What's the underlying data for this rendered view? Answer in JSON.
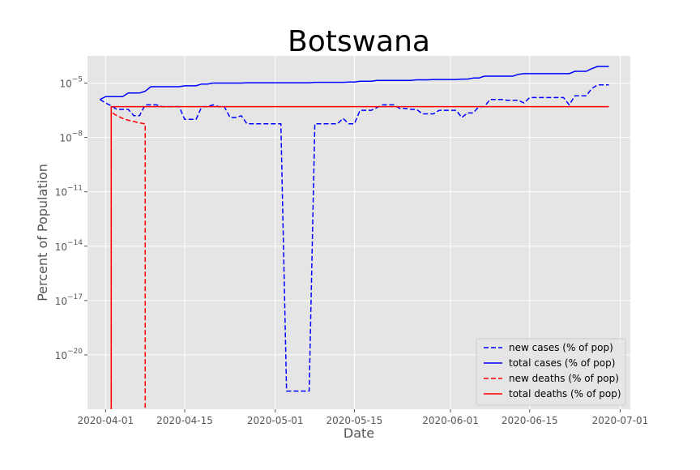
{
  "chart_data": {
    "type": "line",
    "title": "Botswana",
    "xlabel": "Date",
    "ylabel": "Percent of Population",
    "yscale": "log",
    "ylim_exp": [
      -23,
      -3.5
    ],
    "xlim_days": [
      -3.2,
      92.8
    ],
    "x_start_date": "2020-04-01",
    "grid": true,
    "legend_position": "lower-right",
    "xticks": [
      {
        "label": "2020-04-01",
        "day": 0
      },
      {
        "label": "2020-04-15",
        "day": 14
      },
      {
        "label": "2020-05-01",
        "day": 30
      },
      {
        "label": "2020-05-15",
        "day": 44
      },
      {
        "label": "2020-06-01",
        "day": 61
      },
      {
        "label": "2020-06-15",
        "day": 75
      },
      {
        "label": "2020-07-01",
        "day": 91
      }
    ],
    "yticks": [
      {
        "base": "10",
        "exp": "−20",
        "value": -20
      },
      {
        "base": "10",
        "exp": "−17",
        "value": -17
      },
      {
        "base": "10",
        "exp": "−14",
        "value": -14
      },
      {
        "base": "10",
        "exp": "−11",
        "value": -11
      },
      {
        "base": "10",
        "exp": "−8",
        "value": -8
      },
      {
        "base": "10",
        "exp": "−5",
        "value": -5
      }
    ],
    "series": [
      {
        "name": "new cases (% of pop)",
        "color": "#0000ff",
        "dash": "dashed",
        "points": [
          [
            -1,
            -5.9
          ],
          [
            0,
            -6.1
          ],
          [
            1,
            -6.25
          ],
          [
            2,
            -6.45
          ],
          [
            3,
            -6.45
          ],
          [
            4,
            -6.45
          ],
          [
            5,
            -6.8
          ],
          [
            6,
            -6.8
          ],
          [
            7,
            -6.2
          ],
          [
            8,
            -6.2
          ],
          [
            9,
            -6.2
          ],
          [
            10,
            -6.3
          ],
          [
            11,
            -6.3
          ],
          [
            12,
            -6.3
          ],
          [
            13,
            -6.3
          ],
          [
            14,
            -7.0
          ],
          [
            15,
            -7.0
          ],
          [
            16,
            -7.0
          ],
          [
            17,
            -6.3
          ],
          [
            18,
            -6.3
          ],
          [
            19,
            -6.2
          ],
          [
            20,
            -6.3
          ],
          [
            21,
            -6.3
          ],
          [
            22,
            -6.9
          ],
          [
            23,
            -6.9
          ],
          [
            24,
            -6.8
          ],
          [
            25,
            -7.25
          ],
          [
            26,
            -7.25
          ],
          [
            27,
            -7.25
          ],
          [
            28,
            -7.25
          ],
          [
            29,
            -7.25
          ],
          [
            30,
            -7.25
          ],
          [
            31,
            -7.25
          ],
          [
            32,
            -22.0
          ],
          [
            33,
            -22.0
          ],
          [
            34,
            -22.0
          ],
          [
            35,
            -22.0
          ],
          [
            36,
            -22.0
          ],
          [
            37,
            -7.25
          ],
          [
            38,
            -7.25
          ],
          [
            39,
            -7.25
          ],
          [
            40,
            -7.25
          ],
          [
            41,
            -7.25
          ],
          [
            42,
            -6.95
          ],
          [
            43,
            -7.25
          ],
          [
            44,
            -7.25
          ],
          [
            45,
            -6.5
          ],
          [
            46,
            -6.5
          ],
          [
            47,
            -6.5
          ],
          [
            48,
            -6.35
          ],
          [
            49,
            -6.2
          ],
          [
            50,
            -6.2
          ],
          [
            51,
            -6.2
          ],
          [
            52,
            -6.4
          ],
          [
            53,
            -6.4
          ],
          [
            54,
            -6.45
          ],
          [
            55,
            -6.45
          ],
          [
            56,
            -6.7
          ],
          [
            57,
            -6.7
          ],
          [
            58,
            -6.7
          ],
          [
            59,
            -6.5
          ],
          [
            60,
            -6.5
          ],
          [
            61,
            -6.5
          ],
          [
            62,
            -6.5
          ],
          [
            63,
            -6.9
          ],
          [
            64,
            -6.65
          ],
          [
            65,
            -6.65
          ],
          [
            66,
            -6.3
          ],
          [
            67,
            -6.3
          ],
          [
            68,
            -5.9
          ],
          [
            69,
            -5.9
          ],
          [
            70,
            -5.9
          ],
          [
            71,
            -5.95
          ],
          [
            72,
            -5.95
          ],
          [
            73,
            -5.95
          ],
          [
            74,
            -6.1
          ],
          [
            75,
            -5.8
          ],
          [
            76,
            -5.8
          ],
          [
            77,
            -5.8
          ],
          [
            78,
            -5.8
          ],
          [
            79,
            -5.8
          ],
          [
            80,
            -5.8
          ],
          [
            81,
            -5.8
          ],
          [
            82,
            -6.2
          ],
          [
            83,
            -5.7
          ],
          [
            84,
            -5.7
          ],
          [
            85,
            -5.7
          ],
          [
            86,
            -5.3
          ],
          [
            87,
            -5.1
          ],
          [
            88,
            -5.1
          ],
          [
            89,
            -5.1
          ]
        ]
      },
      {
        "name": "total cases (% of pop)",
        "color": "#0000ff",
        "dash": "solid",
        "points": [
          [
            -1,
            -5.9
          ],
          [
            0,
            -5.75
          ],
          [
            1,
            -5.75
          ],
          [
            2,
            -5.75
          ],
          [
            3,
            -5.75
          ],
          [
            4,
            -5.55
          ],
          [
            5,
            -5.55
          ],
          [
            6,
            -5.55
          ],
          [
            7,
            -5.45
          ],
          [
            8,
            -5.2
          ],
          [
            9,
            -5.2
          ],
          [
            10,
            -5.2
          ],
          [
            11,
            -5.2
          ],
          [
            12,
            -5.2
          ],
          [
            13,
            -5.2
          ],
          [
            14,
            -5.15
          ],
          [
            15,
            -5.15
          ],
          [
            16,
            -5.15
          ],
          [
            17,
            -5.05
          ],
          [
            18,
            -5.05
          ],
          [
            19,
            -5.0
          ],
          [
            20,
            -5.0
          ],
          [
            21,
            -5.0
          ],
          [
            22,
            -5.0
          ],
          [
            23,
            -5.0
          ],
          [
            24,
            -5.0
          ],
          [
            25,
            -4.98
          ],
          [
            26,
            -4.98
          ],
          [
            27,
            -4.98
          ],
          [
            28,
            -4.98
          ],
          [
            29,
            -4.98
          ],
          [
            30,
            -4.98
          ],
          [
            31,
            -4.98
          ],
          [
            32,
            -4.98
          ],
          [
            33,
            -4.98
          ],
          [
            34,
            -4.98
          ],
          [
            35,
            -4.98
          ],
          [
            36,
            -4.98
          ],
          [
            37,
            -4.96
          ],
          [
            38,
            -4.96
          ],
          [
            39,
            -4.96
          ],
          [
            40,
            -4.96
          ],
          [
            41,
            -4.96
          ],
          [
            42,
            -4.96
          ],
          [
            43,
            -4.94
          ],
          [
            44,
            -4.94
          ],
          [
            45,
            -4.9
          ],
          [
            46,
            -4.9
          ],
          [
            47,
            -4.9
          ],
          [
            48,
            -4.85
          ],
          [
            49,
            -4.85
          ],
          [
            50,
            -4.85
          ],
          [
            51,
            -4.85
          ],
          [
            52,
            -4.85
          ],
          [
            53,
            -4.85
          ],
          [
            54,
            -4.85
          ],
          [
            55,
            -4.82
          ],
          [
            56,
            -4.82
          ],
          [
            57,
            -4.82
          ],
          [
            58,
            -4.8
          ],
          [
            59,
            -4.8
          ],
          [
            60,
            -4.8
          ],
          [
            61,
            -4.8
          ],
          [
            62,
            -4.8
          ],
          [
            63,
            -4.78
          ],
          [
            64,
            -4.78
          ],
          [
            65,
            -4.72
          ],
          [
            66,
            -4.72
          ],
          [
            67,
            -4.62
          ],
          [
            68,
            -4.62
          ],
          [
            69,
            -4.62
          ],
          [
            70,
            -4.62
          ],
          [
            71,
            -4.62
          ],
          [
            72,
            -4.62
          ],
          [
            73,
            -4.52
          ],
          [
            74,
            -4.48
          ],
          [
            75,
            -4.48
          ],
          [
            76,
            -4.48
          ],
          [
            77,
            -4.48
          ],
          [
            78,
            -4.48
          ],
          [
            79,
            -4.48
          ],
          [
            80,
            -4.48
          ],
          [
            81,
            -4.48
          ],
          [
            82,
            -4.48
          ],
          [
            83,
            -4.35
          ],
          [
            84,
            -4.35
          ],
          [
            85,
            -4.35
          ],
          [
            86,
            -4.2
          ],
          [
            87,
            -4.08
          ],
          [
            88,
            -4.08
          ],
          [
            89,
            -4.08
          ]
        ]
      },
      {
        "name": "new deaths (% of pop)",
        "color": "#ff0000",
        "dash": "dashed",
        "points": [
          [
            1,
            -23.5
          ],
          [
            1,
            -6.6
          ],
          [
            2,
            -6.8
          ],
          [
            3,
            -6.95
          ],
          [
            4,
            -7.05
          ],
          [
            5,
            -7.12
          ],
          [
            6,
            -7.2
          ],
          [
            7,
            -7.25
          ],
          [
            7,
            -23.5
          ]
        ]
      },
      {
        "name": "total deaths (% of pop)",
        "color": "#ff0000",
        "dash": "solid",
        "points": [
          [
            1,
            -23.5
          ],
          [
            1,
            -6.3
          ],
          [
            89,
            -6.3
          ]
        ]
      }
    ]
  }
}
